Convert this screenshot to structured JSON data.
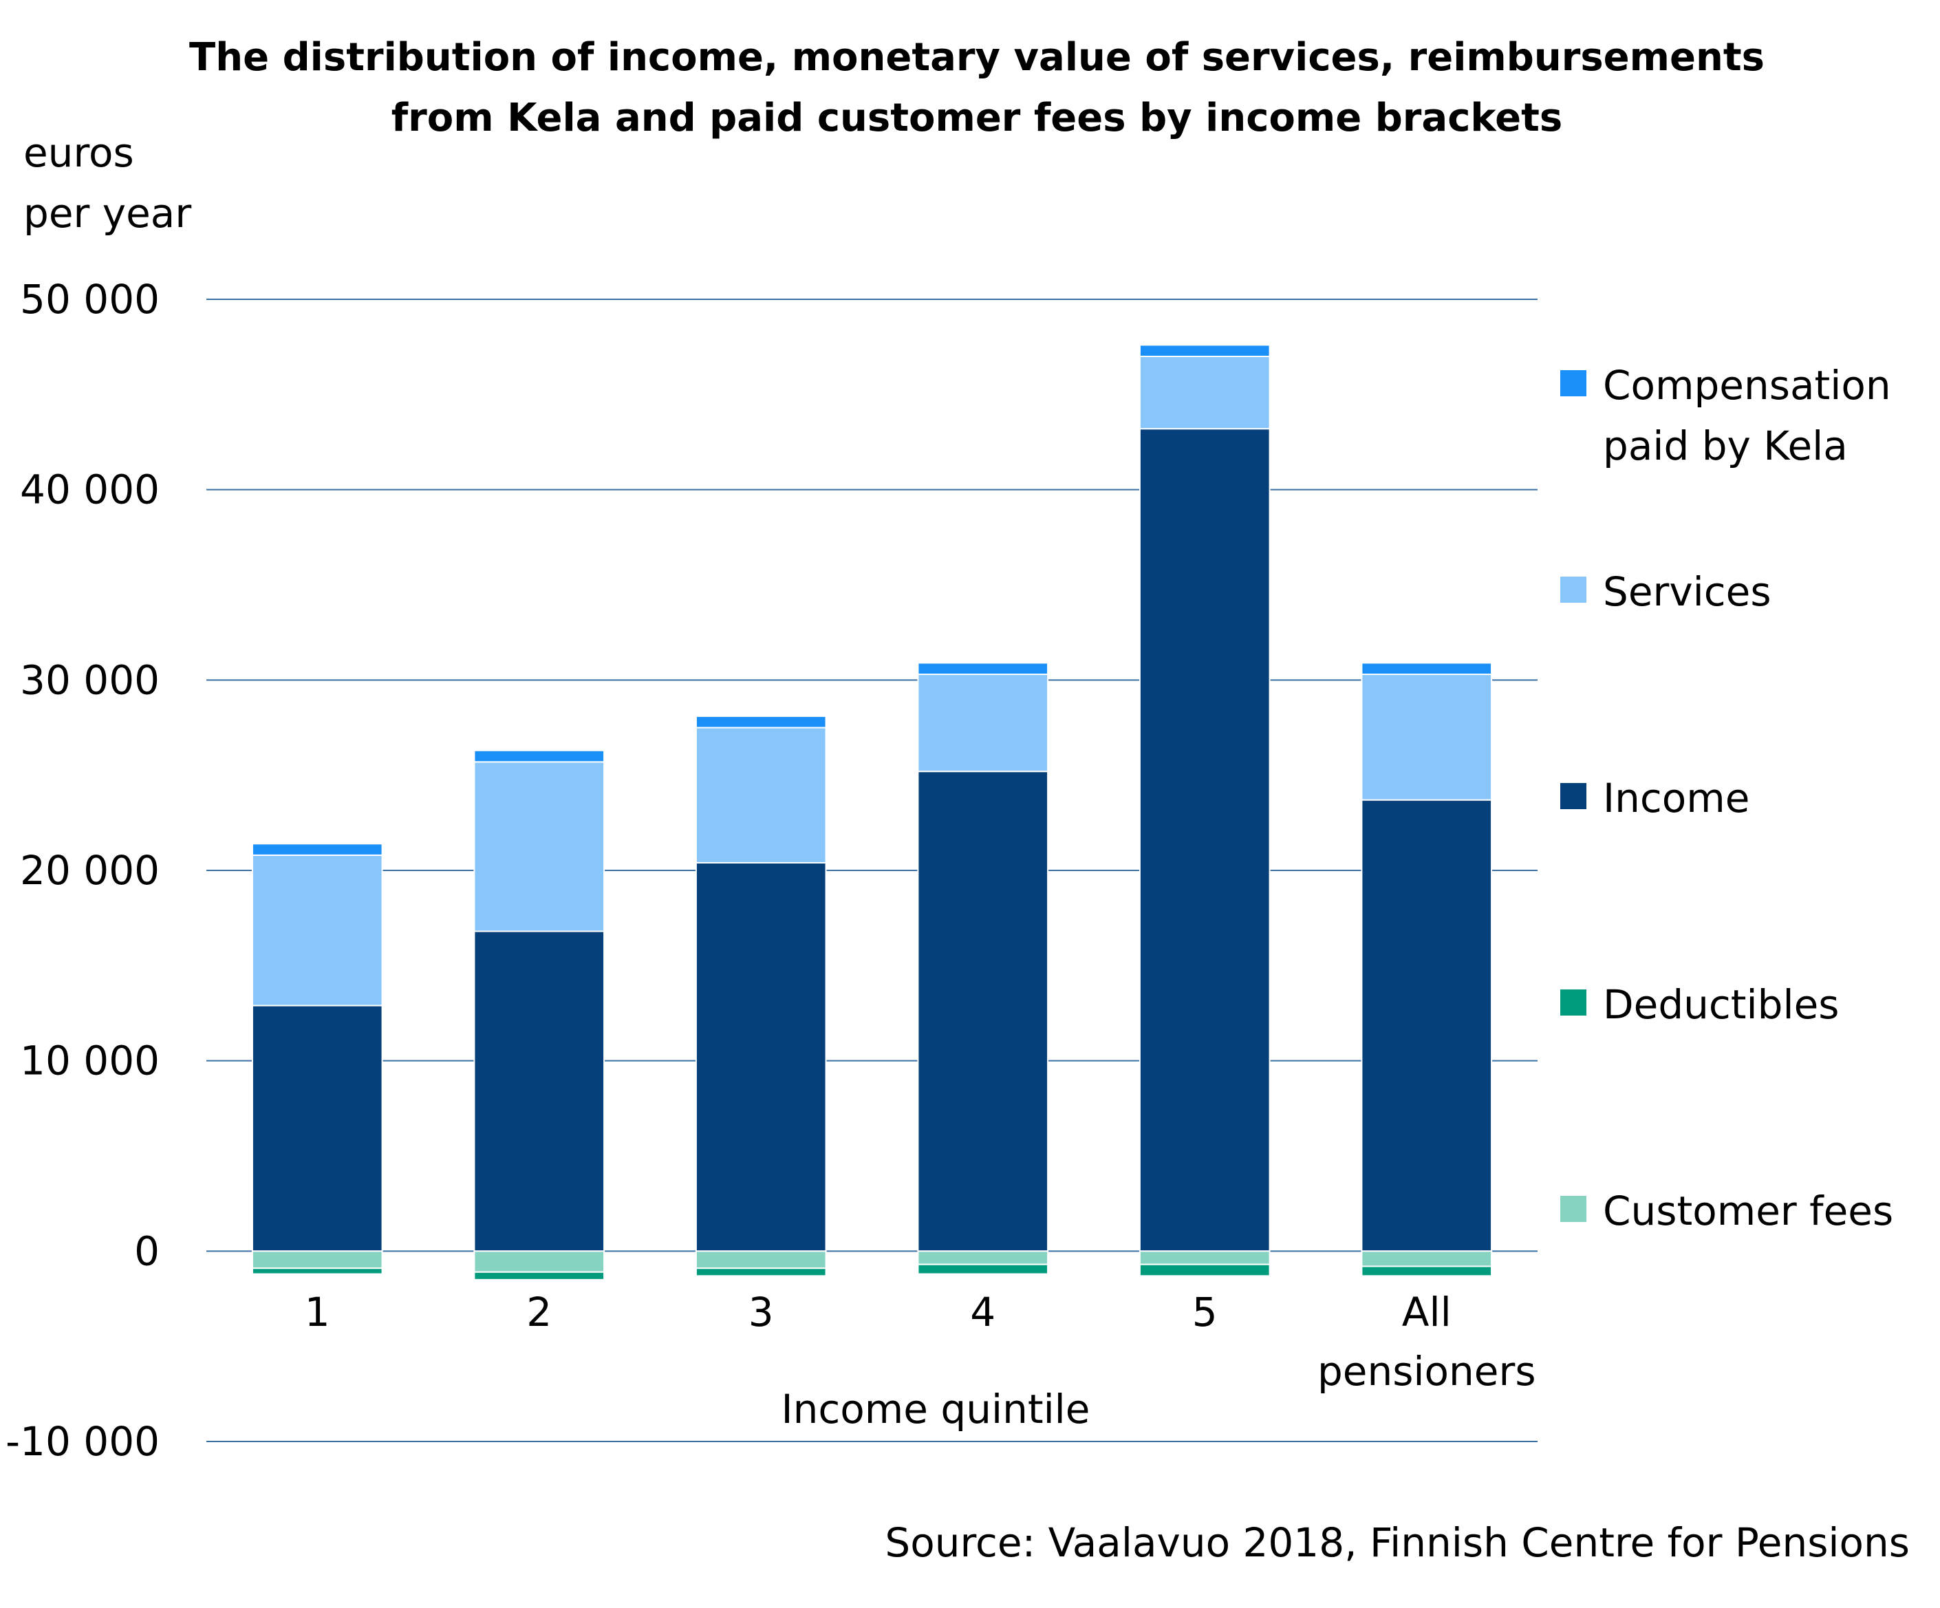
{
  "chart_data": {
    "type": "bar",
    "stacked": true,
    "title_lines": [
      "The distribution of income, monetary value of services, reimbursements",
      "from Kela and paid customer fees by income brackets"
    ],
    "ylabel_lines": [
      "euros",
      "per year"
    ],
    "xlabel": "Income quintile",
    "categories": [
      [
        "1"
      ],
      [
        "2"
      ],
      [
        "3"
      ],
      [
        "4"
      ],
      [
        "5"
      ],
      [
        "All",
        "pensioners"
      ]
    ],
    "yticks": [
      50000,
      40000,
      30000,
      20000,
      10000,
      0,
      -10000
    ],
    "ytick_labels": [
      "50 000",
      "40 000",
      "30 000",
      "20 000",
      "10 000",
      "0",
      "-10 000"
    ],
    "ylim": [
      -10000,
      50000
    ],
    "grid": true,
    "legend_position": "right",
    "series": [
      {
        "name": "Customer fees",
        "color": "#86d3c2",
        "values": [
          -900,
          -1100,
          -900,
          -700,
          -700,
          -800
        ]
      },
      {
        "name": "Deductibles",
        "color": "#009b7d",
        "values": [
          -300,
          -400,
          -400,
          -500,
          -600,
          -500
        ]
      },
      {
        "name": "Income",
        "color": "#05407b",
        "values": [
          12900,
          16800,
          20400,
          25200,
          43200,
          23700
        ]
      },
      {
        "name": "Services",
        "color": "#88c5fb",
        "values": [
          7900,
          8900,
          7100,
          5100,
          3800,
          6600
        ]
      },
      {
        "name": "Compensation paid by Kela",
        "color": "#1a8ff8",
        "values": [
          600,
          600,
          600,
          600,
          600,
          600
        ]
      }
    ],
    "legend_order": [
      {
        "lines": [
          "Compensation",
          "paid by Kela"
        ],
        "color": "#1a8ff8"
      },
      {
        "lines": [
          "Services"
        ],
        "color": "#88c5fb"
      },
      {
        "lines": [
          "Income"
        ],
        "color": "#05407b"
      },
      {
        "lines": [
          "Deductibles"
        ],
        "color": "#009b7d"
      },
      {
        "lines": [
          "Customer fees"
        ],
        "color": "#86d3c2"
      }
    ],
    "grid_color": "#3a6fa5",
    "source": "Source: Vaalavuo 2018, Finnish Centre for Pensions"
  }
}
